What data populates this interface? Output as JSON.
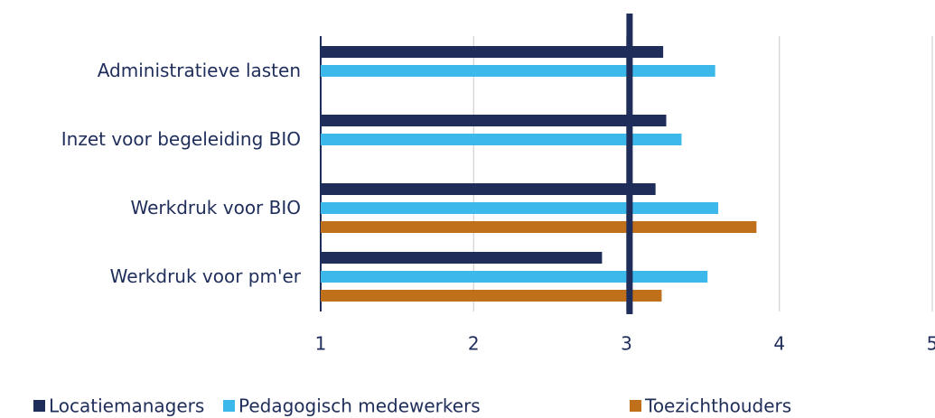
{
  "chart_data": {
    "type": "hbar",
    "categories": [
      "Administratieve lasten",
      "Inzet voor begeleiding BIO",
      "Werkdruk voor BIO",
      "Werkdruk voor pm'er"
    ],
    "series": [
      {
        "name": "Locatiemanagers",
        "color": "#1f2d5a",
        "values": [
          3.24,
          3.26,
          3.19,
          2.84
        ]
      },
      {
        "name": "Pedagogisch medewerkers",
        "color": "#3db8ea",
        "values": [
          3.58,
          3.36,
          3.6,
          3.53
        ]
      },
      {
        "name": "Toezichthouders",
        "color": "#c0701a",
        "values": [
          null,
          null,
          3.85,
          3.23
        ]
      }
    ],
    "xlim": [
      1,
      5
    ],
    "xticks": [
      1,
      2,
      3,
      4,
      5
    ],
    "grid": true,
    "reference_value": 3.02,
    "reference_color": "#1f2d5a",
    "legend": "bottom"
  }
}
